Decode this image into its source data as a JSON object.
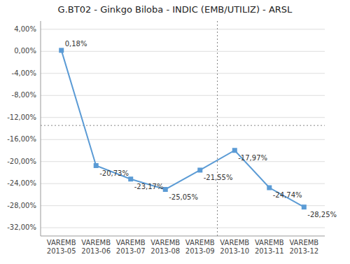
{
  "chart_data": {
    "type": "line",
    "title": "G.BT02 -  Ginkgo Biloba - INDIC (EMB/UTILIZ) - ARSL",
    "categories": [
      "VAREMB\n2013-05",
      "VAREMB\n2013-06",
      "VAREMB\n2013-07",
      "VAREMB\n2013-08",
      "VAREMB\n2013-09",
      "VAREMB\n2013-10",
      "VAREMB\n2013-11",
      "VAREMB\n2013-12"
    ],
    "values": [
      0.0018,
      -0.2073,
      -0.2317,
      -0.2505,
      -0.2155,
      -0.1797,
      -0.2474,
      -0.2825
    ],
    "data_labels": true,
    "value_labels": [
      "0,18%",
      "-20,73%",
      "-23,17%",
      "-25,05%",
      "-21,55%",
      "-17,97%",
      "-24,74%",
      "-28,25%"
    ],
    "color": "#5b9bd5",
    "marker": "square",
    "line_style": "solid",
    "ylim": [
      -0.335,
      0.055
    ],
    "yticks": [
      {
        "value": 0.04,
        "label": "4,00%"
      },
      {
        "value": 0.0,
        "label": "0,00%"
      },
      {
        "value": -0.04,
        "label": "-4,00%"
      },
      {
        "value": -0.08,
        "label": "-8,00%"
      },
      {
        "value": -0.12,
        "label": "-12,00%"
      },
      {
        "value": -0.16,
        "label": "-16,00%"
      },
      {
        "value": -0.2,
        "label": "-20,00%"
      },
      {
        "value": -0.24,
        "label": "-24,00%"
      },
      {
        "value": -0.28,
        "label": "-28,00%"
      },
      {
        "value": -0.32,
        "label": "-32,00%"
      }
    ],
    "grid": true,
    "vline_x": 4.5,
    "hline_y": -0.1345
  }
}
